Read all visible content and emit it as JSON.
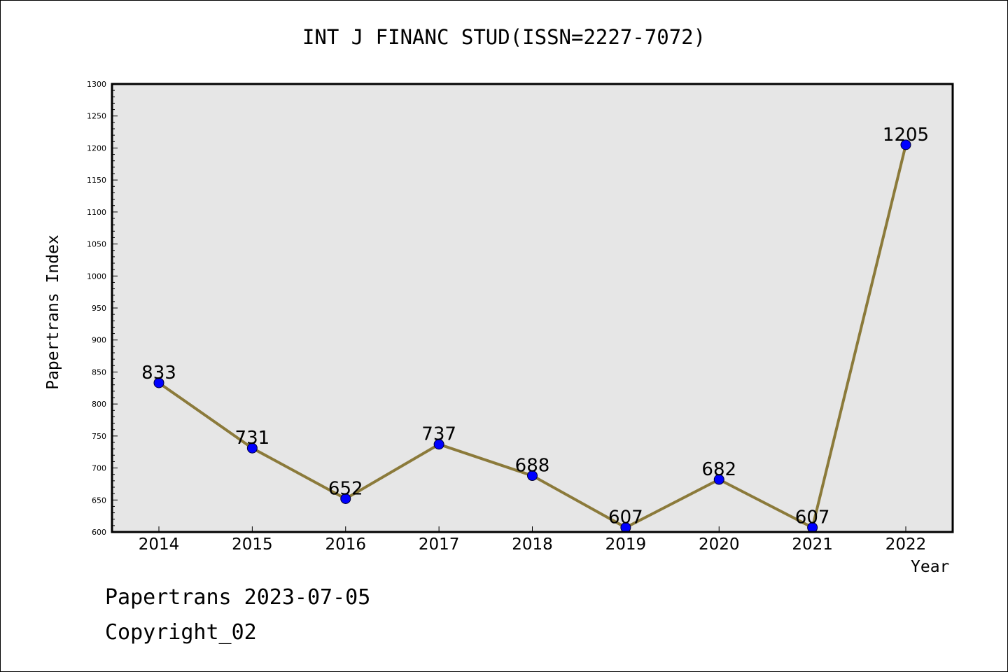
{
  "chart_data": {
    "type": "line",
    "title": "INT J FINANC STUD(ISSN=2227-7072)",
    "xlabel": "Year",
    "ylabel": "Papertrans Index",
    "categories": [
      "2014",
      "2015",
      "2016",
      "2017",
      "2018",
      "2019",
      "2020",
      "2021",
      "2022"
    ],
    "series": [
      {
        "values": [
          833,
          731,
          652,
          737,
          688,
          607,
          682,
          607,
          1205
        ]
      }
    ],
    "ylim": [
      600,
      1300
    ],
    "yticks": [
      600,
      650,
      700,
      750,
      800,
      850,
      900,
      950,
      1000,
      1050,
      1100,
      1150,
      1200,
      1250,
      1300
    ],
    "y_minor_step": 10,
    "grid": false,
    "data_labels": true,
    "colors": {
      "line": "#8b7a3a",
      "marker": "#0000ff",
      "plot_background": "#e6e6e6"
    }
  },
  "footer": {
    "line1": "Papertrans 2023-07-05",
    "line2": "Copyright_02"
  }
}
